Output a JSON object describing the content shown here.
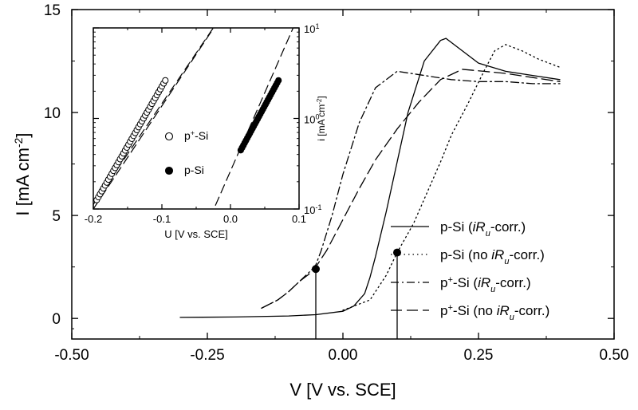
{
  "chart_data": [
    {
      "type": "line",
      "xlabel": "V  [V vs. SCE]",
      "ylabel": "I [mA cm",
      "ylabel_sup": "-2",
      "ylabel_end": "]",
      "xlim": [
        -0.5,
        0.5
      ],
      "ylim": [
        -1,
        15
      ],
      "x_ticks": [
        {
          "value": -0.5,
          "label": "-0.50"
        },
        {
          "value": -0.25,
          "label": "-0.25"
        },
        {
          "value": 0.0,
          "label": "0.00"
        },
        {
          "value": 0.25,
          "label": "0.25"
        },
        {
          "value": 0.5,
          "label": "0.50"
        }
      ],
      "y_ticks": [
        {
          "value": 0,
          "label": "0"
        },
        {
          "value": 5,
          "label": "5"
        },
        {
          "value": 10,
          "label": "10"
        },
        {
          "value": 15,
          "label": "15"
        }
      ],
      "legend_position": "bottom-right",
      "series": [
        {
          "name": "p-Si (iRu-corr.)",
          "legend_parts": [
            {
              "t": "p-Si ("
            },
            {
              "t": "iR",
              "it": true
            },
            {
              "t": "u",
              "it": true,
              "sub": true
            },
            {
              "t": "-corr.)"
            }
          ],
          "style": "solid",
          "x": [
            -0.3,
            -0.2,
            -0.1,
            -0.05,
            0.0,
            0.02,
            0.04,
            0.05,
            0.06,
            0.08,
            0.1,
            0.12,
            0.15,
            0.18,
            0.19,
            0.22,
            0.25,
            0.3,
            0.35,
            0.4
          ],
          "y": [
            0.05,
            0.07,
            0.12,
            0.18,
            0.35,
            0.6,
            1.2,
            2.0,
            3.0,
            5.2,
            7.6,
            10.0,
            12.5,
            13.5,
            13.6,
            13.0,
            12.4,
            12.0,
            11.8,
            11.6
          ]
        },
        {
          "name": "p-Si (no iRu-corr.)",
          "legend_parts": [
            {
              "t": "p-Si (no "
            },
            {
              "t": "iR",
              "it": true
            },
            {
              "t": "u",
              "it": true,
              "sub": true
            },
            {
              "t": "-corr.)"
            }
          ],
          "style": "dotted",
          "x": [
            0.0,
            0.05,
            0.08,
            0.1,
            0.13,
            0.15,
            0.18,
            0.2,
            0.23,
            0.26,
            0.28,
            0.3,
            0.33,
            0.36,
            0.4
          ],
          "y": [
            0.4,
            0.9,
            2.1,
            3.2,
            4.6,
            5.8,
            7.6,
            8.9,
            10.4,
            12.0,
            13.0,
            13.3,
            13.0,
            12.6,
            12.2
          ]
        },
        {
          "name": "p+-Si (iRu-corr.)",
          "legend_parts": [
            {
              "t": "p"
            },
            {
              "t": "+",
              "sup": true
            },
            {
              "t": "-Si ("
            },
            {
              "t": "iR",
              "it": true
            },
            {
              "t": "u",
              "it": true,
              "sub": true
            },
            {
              "t": "-corr.)"
            }
          ],
          "style": "dashdot",
          "x": [
            -0.15,
            -0.12,
            -0.1,
            -0.08,
            -0.06,
            -0.05,
            -0.04,
            -0.02,
            0.0,
            0.03,
            0.06,
            0.1,
            0.15,
            0.2,
            0.25,
            0.3,
            0.35,
            0.4
          ],
          "y": [
            0.5,
            0.9,
            1.3,
            1.8,
            2.3,
            2.6,
            3.3,
            5.0,
            7.0,
            9.5,
            11.2,
            12.0,
            11.8,
            11.6,
            11.5,
            11.5,
            11.4,
            11.4
          ]
        },
        {
          "name": "p+-Si (no iRu-corr.)",
          "legend_parts": [
            {
              "t": "p"
            },
            {
              "t": "+",
              "sup": true
            },
            {
              "t": "-Si (no "
            },
            {
              "t": "iR",
              "it": true
            },
            {
              "t": "u",
              "it": true,
              "sub": true
            },
            {
              "t": "-corr.)"
            }
          ],
          "style": "dashed",
          "x": [
            -0.15,
            -0.12,
            -0.1,
            -0.08,
            -0.06,
            -0.05,
            -0.03,
            0.0,
            0.03,
            0.06,
            0.1,
            0.14,
            0.18,
            0.22,
            0.26,
            0.3,
            0.35,
            0.4
          ],
          "y": [
            0.5,
            0.9,
            1.3,
            1.8,
            2.2,
            2.5,
            3.3,
            4.8,
            6.3,
            7.7,
            9.2,
            10.5,
            11.6,
            12.1,
            12.0,
            11.9,
            11.7,
            11.5
          ]
        }
      ],
      "markers": [
        {
          "x": -0.05,
          "y": 2.4
        },
        {
          "x": 0.1,
          "y": 3.2
        }
      ]
    },
    {
      "type": "scatter",
      "xlabel": "U [V vs. SCE]",
      "ylabel": "i [mA cm",
      "ylabel_sup": "-2",
      "ylabel_end": "]",
      "xlim": [
        -0.2,
        0.1
      ],
      "ylim_log10": [
        -1,
        1
      ],
      "log_y": true,
      "x_ticks": [
        {
          "value": -0.2,
          "label": "-0.2"
        },
        {
          "value": -0.1,
          "label": "-0.1"
        },
        {
          "value": 0.0,
          "label": "0.0"
        },
        {
          "value": 0.1,
          "label": "0.1"
        }
      ],
      "y_ticks": [
        {
          "exp": -1,
          "base": "10",
          "sup": "-1"
        },
        {
          "exp": 0,
          "base": "10",
          "sup": "0"
        },
        {
          "exp": 1,
          "base": "10",
          "sup": "1"
        }
      ],
      "legend": [
        {
          "marker": "open",
          "parts": [
            {
              "t": "p"
            },
            {
              "t": "+",
              "sup": true
            },
            {
              "t": "-Si"
            }
          ]
        },
        {
          "marker": "filled",
          "parts": [
            {
              "t": "p-Si"
            }
          ]
        }
      ],
      "fit_lines": [
        {
          "x": [
            -0.2,
            -0.02
          ],
          "log_y": [
            -1.0,
            1.05
          ]
        },
        {
          "x": [
            -0.2,
            0.0
          ],
          "log_y": [
            -0.95,
            1.28
          ]
        },
        {
          "x": [
            -0.03,
            0.1
          ],
          "log_y": [
            -1.1,
            1.15
          ]
        }
      ],
      "series": [
        {
          "marker": "open",
          "x_start": -0.195,
          "x_end": -0.095,
          "log_y_start": -0.9,
          "log_y_end": 0.42,
          "count": 42
        },
        {
          "marker": "filled",
          "x_start": 0.015,
          "x_end": 0.07,
          "log_y_start": -0.35,
          "log_y_end": 0.42,
          "count": 30
        }
      ]
    }
  ]
}
